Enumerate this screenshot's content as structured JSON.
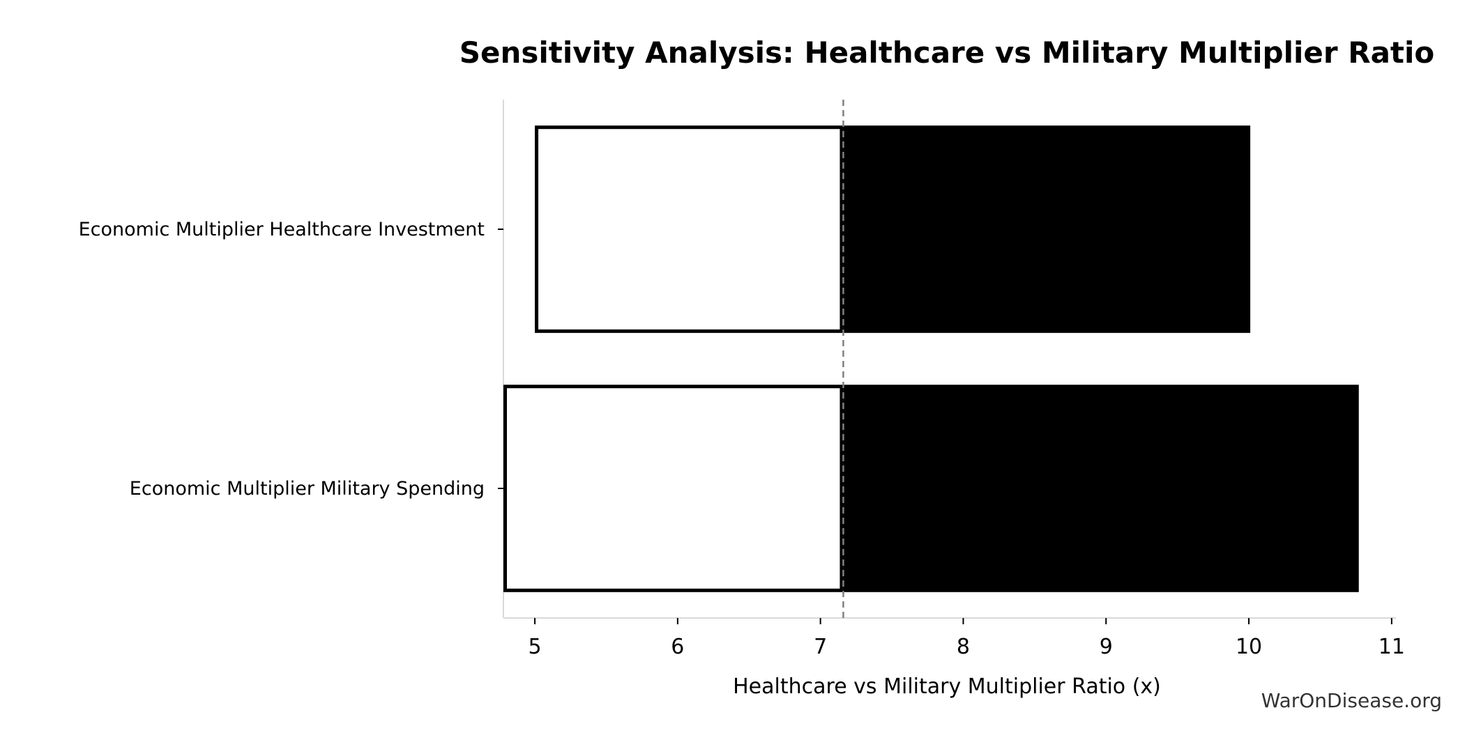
{
  "chart_data": {
    "type": "bar",
    "orientation": "horizontal",
    "subtype": "tornado",
    "title": "Sensitivity Analysis: Healthcare vs Military Multiplier Ratio",
    "xlabel": "Healthcare vs Military Multiplier Ratio (x)",
    "ylabel": "",
    "xlim": [
      4.78,
      11.03
    ],
    "xticks": [
      "5",
      "6",
      "7",
      "8",
      "9",
      "10",
      "11"
    ],
    "baseline": 7.16,
    "grid": false,
    "legend": "none",
    "categories": [
      "Economic Multiplier Healthcare Investment",
      "Economic Multiplier Military Spending"
    ],
    "bars": [
      {
        "category": "Economic Multiplier Healthcare Investment",
        "low": 5.0,
        "high": 10.01
      },
      {
        "category": "Economic Multiplier Military Spending",
        "low": 4.78,
        "high": 10.77
      }
    ],
    "colors": {
      "low_fill": "#ffffff",
      "low_edge": "#000000",
      "high_fill": "#000000",
      "baseline": "#808080",
      "axis": "#d9d9d9"
    }
  },
  "watermark": "WarOnDisease.org"
}
